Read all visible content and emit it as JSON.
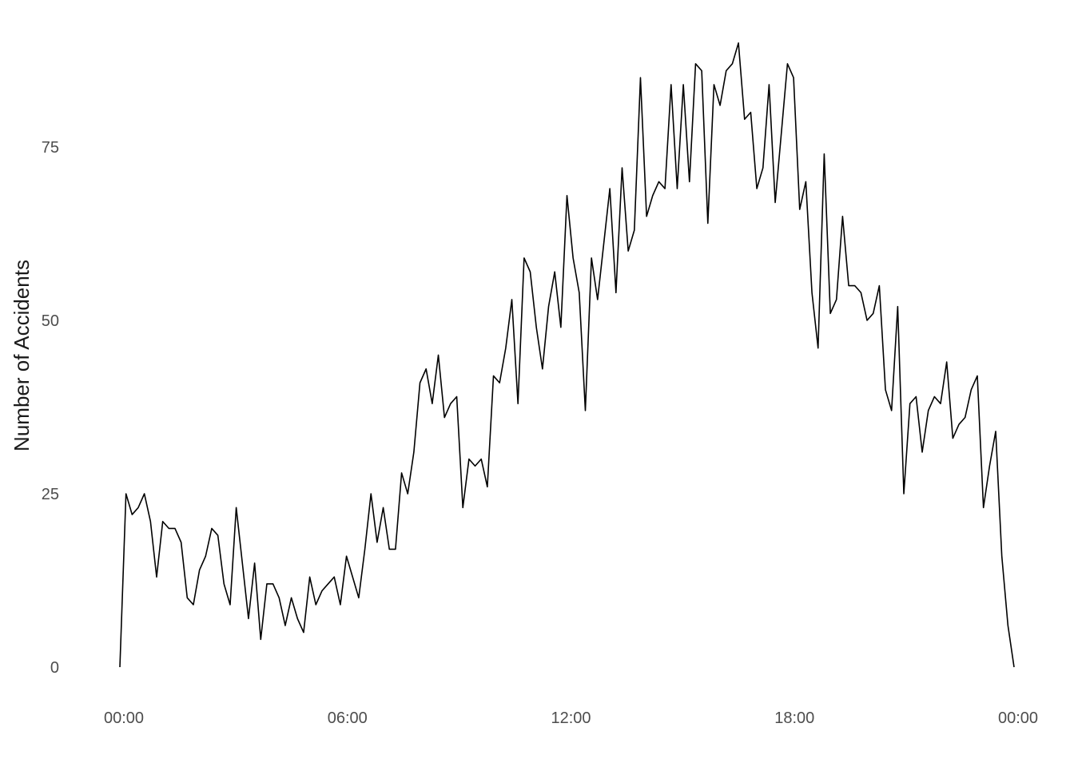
{
  "chart_data": {
    "type": "line",
    "title": "",
    "xlabel": "",
    "ylabel": "Number of Accidents",
    "grid": false,
    "x_unit": "hours since midnight",
    "xlim": [
      0,
      24.0
    ],
    "ylim": [
      0,
      90
    ],
    "x_ticks": [
      {
        "value": 0,
        "label": "00:00"
      },
      {
        "value": 6,
        "label": "06:00"
      },
      {
        "value": 12,
        "label": "12:00"
      },
      {
        "value": 18,
        "label": "18:00"
      },
      {
        "value": 24,
        "label": "00:00"
      }
    ],
    "y_ticks": [
      {
        "value": 0,
        "label": "0"
      },
      {
        "value": 25,
        "label": "25"
      },
      {
        "value": 50,
        "label": "50"
      },
      {
        "value": 75,
        "label": "75"
      }
    ],
    "series": [
      {
        "color": "#000000",
        "values": [
          0,
          25,
          22,
          23,
          25,
          21,
          13,
          21,
          20,
          20,
          18,
          10,
          9,
          14,
          16,
          20,
          19,
          12,
          9,
          23,
          15,
          7,
          15,
          4,
          12,
          12,
          10,
          6,
          10,
          7,
          5,
          13,
          9,
          11,
          12,
          13,
          9,
          16,
          13,
          10,
          17,
          25,
          18,
          23,
          17,
          17,
          28,
          25,
          31,
          41,
          43,
          38,
          45,
          36,
          38,
          39,
          23,
          30,
          29,
          30,
          26,
          42,
          41,
          46,
          53,
          38,
          59,
          57,
          49,
          43,
          52,
          57,
          49,
          68,
          59,
          54,
          37,
          59,
          53,
          61,
          69,
          54,
          72,
          60,
          63,
          85,
          65,
          68,
          70,
          69,
          84,
          69,
          84,
          70,
          87,
          86,
          64,
          84,
          81,
          86,
          87,
          90,
          79,
          80,
          69,
          72,
          84,
          67,
          77,
          87,
          85,
          66,
          70,
          54,
          46,
          74,
          51,
          53,
          65,
          55,
          55,
          54,
          50,
          51,
          55,
          40,
          37,
          52,
          25,
          38,
          39,
          31,
          37,
          39,
          38,
          44,
          33,
          35,
          36,
          40,
          42,
          23,
          29,
          34,
          16,
          6,
          0
        ]
      }
    ]
  }
}
